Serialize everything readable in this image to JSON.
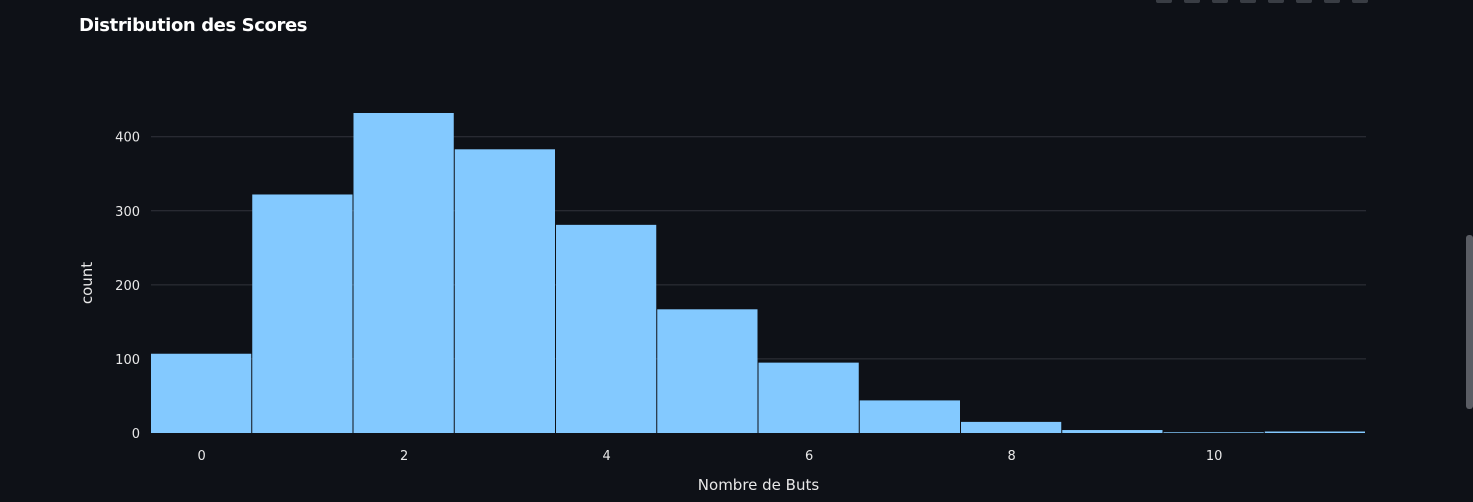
{
  "title": "Distribution des Scores",
  "toolbar": {
    "icons": [
      "camera-icon",
      "zoom-icon",
      "pan-icon",
      "zoom-in-icon",
      "zoom-out-icon",
      "autoscale-icon",
      "reset-axes-icon",
      "fullscreen-icon"
    ]
  },
  "chart_data": {
    "type": "bar",
    "title": "Distribution des Scores",
    "xlabel": "Nombre de Buts",
    "ylabel": "count",
    "x": [
      0,
      1,
      2,
      3,
      4,
      5,
      6,
      7,
      8,
      9,
      10,
      11
    ],
    "values": [
      107,
      322,
      432,
      383,
      281,
      167,
      95,
      44,
      15,
      4,
      1,
      2
    ],
    "xlim": [
      -0.5,
      11.5
    ],
    "ylim": [
      0,
      432
    ],
    "xticks": [
      0,
      2,
      4,
      6,
      8,
      10
    ],
    "yticks": [
      0,
      100,
      200,
      300,
      400
    ],
    "bar_color": "#83c9ff",
    "grid": true,
    "legend": "none"
  }
}
